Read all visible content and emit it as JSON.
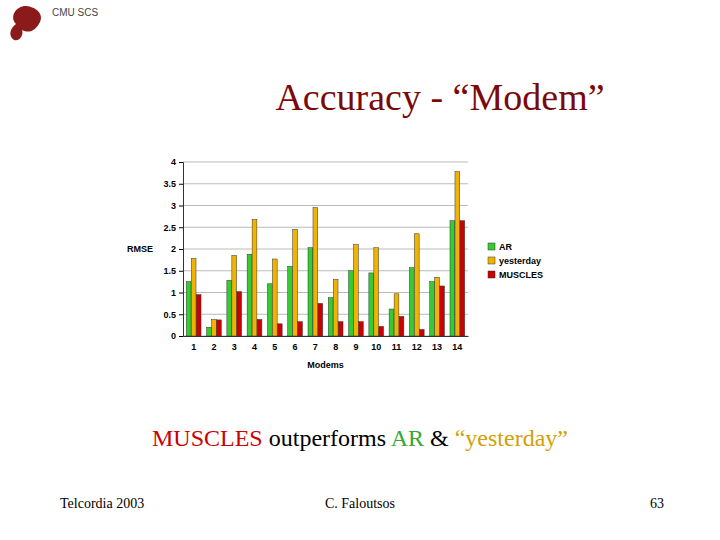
{
  "chart_data": {
    "type": "bar",
    "title": "Accuracy - “Modem”",
    "x_label": "Modems",
    "y_label": "RMSE",
    "categories": [
      "1",
      "2",
      "3",
      "4",
      "5",
      "6",
      "7",
      "8",
      "9",
      "10",
      "11",
      "12",
      "13",
      "14"
    ],
    "series": [
      {
        "name": "AR",
        "color": "#33cc33",
        "values": [
          1.25,
          0.2,
          1.28,
          1.88,
          1.2,
          1.6,
          2.03,
          0.88,
          1.5,
          1.45,
          0.62,
          1.57,
          1.25,
          2.65
        ]
      },
      {
        "name": "yesterday",
        "color": "#f0b400",
        "values": [
          1.78,
          0.38,
          1.85,
          2.68,
          1.77,
          2.45,
          2.95,
          1.3,
          2.1,
          2.03,
          0.97,
          2.35,
          1.35,
          3.78
        ]
      },
      {
        "name": "MUSCLES",
        "color": "#cc0000",
        "values": [
          0.95,
          0.37,
          1.02,
          0.38,
          0.28,
          0.33,
          0.75,
          0.33,
          0.33,
          0.22,
          0.45,
          0.15,
          1.15,
          2.65
        ]
      }
    ],
    "ylim": [
      0,
      4
    ],
    "yticks": [
      0,
      0.5,
      1,
      1.5,
      2,
      2.5,
      3,
      3.5,
      4
    ],
    "grid": true,
    "legend": "right"
  },
  "slide": {
    "header": "CMU SCS",
    "caption": [
      {
        "text": "MUSCLES",
        "color": "#cc0000"
      },
      {
        "text": " outperforms ",
        "color": "#000000"
      },
      {
        "text": "AR",
        "color": "#33aa33"
      },
      {
        "text": " & ",
        "color": "#000000"
      },
      {
        "text": "“yesterday”",
        "color": "#d4a000"
      }
    ],
    "footer_left": "Telcordia 2003",
    "footer_center": "C. Faloutsos",
    "footer_right": "63"
  }
}
